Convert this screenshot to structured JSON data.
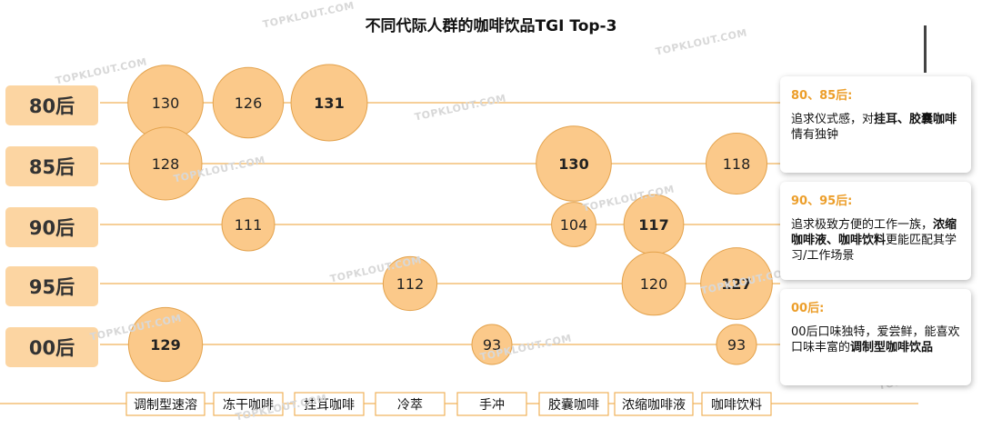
{
  "title": "不同代际人群的咖啡饮品TGI Top-3",
  "chart_data": {
    "type": "bubble-matrix",
    "title": "不同代际人群的咖啡饮品TGI Top-3",
    "categories": [
      "调制型速溶",
      "冻干咖啡",
      "挂耳咖啡",
      "冷萃",
      "手冲",
      "胶囊咖啡",
      "浓缩咖啡液",
      "咖啡饮料"
    ],
    "groups": [
      "80后",
      "85后",
      "90后",
      "95后",
      "00后"
    ],
    "points": [
      {
        "group": "80后",
        "category": "调制型速溶",
        "value": 130,
        "bold": false
      },
      {
        "group": "80后",
        "category": "冻干咖啡",
        "value": 126,
        "bold": false
      },
      {
        "group": "80后",
        "category": "挂耳咖啡",
        "value": 131,
        "bold": true
      },
      {
        "group": "85后",
        "category": "调制型速溶",
        "value": 128,
        "bold": false
      },
      {
        "group": "85后",
        "category": "胶囊咖啡",
        "value": 130,
        "bold": true
      },
      {
        "group": "85后",
        "category": "咖啡饮料",
        "value": 118,
        "bold": false
      },
      {
        "group": "90后",
        "category": "冻干咖啡",
        "value": 111,
        "bold": false
      },
      {
        "group": "90后",
        "category": "胶囊咖啡",
        "value": 104,
        "bold": false
      },
      {
        "group": "90后",
        "category": "浓缩咖啡液",
        "value": 117,
        "bold": true
      },
      {
        "group": "95后",
        "category": "冷萃",
        "value": 112,
        "bold": false
      },
      {
        "group": "95后",
        "category": "浓缩咖啡液",
        "value": 120,
        "bold": false
      },
      {
        "group": "95后",
        "category": "咖啡饮料",
        "value": 127,
        "bold": true
      },
      {
        "group": "00后",
        "category": "调制型速溶",
        "value": 129,
        "bold": true
      },
      {
        "group": "00后",
        "category": "手冲",
        "value": 93,
        "bold": false
      },
      {
        "group": "00后",
        "category": "咖啡饮料",
        "value": 93,
        "bold": false
      }
    ]
  },
  "notes": [
    {
      "head": "80、85后:",
      "text_a": "追求仪式感，对",
      "bold_a": "挂耳、胶囊咖啡",
      "text_b": "情有独钟"
    },
    {
      "head": "90、95后:",
      "text_a": "追求极致方便的工作一族，",
      "bold_a": "浓缩咖啡液、咖啡饮料",
      "text_b": "更能匹配其学习/工作场景"
    },
    {
      "head": "00后:",
      "text_a": "00后口味独特，爱尝鲜，能喜欢口味丰富的",
      "bold_a": "调制型咖啡饮品",
      "text_b": ""
    }
  ],
  "watermark": "TOPKLOUT.COM",
  "colors": {
    "bubble_fill": "#fbc98a",
    "bubble_stroke": "#e3a24c",
    "line": "#f0b25a",
    "group_label_bg": "#fcd5a2",
    "group_label_text": "#333333",
    "accent": "#ec9e2a"
  }
}
